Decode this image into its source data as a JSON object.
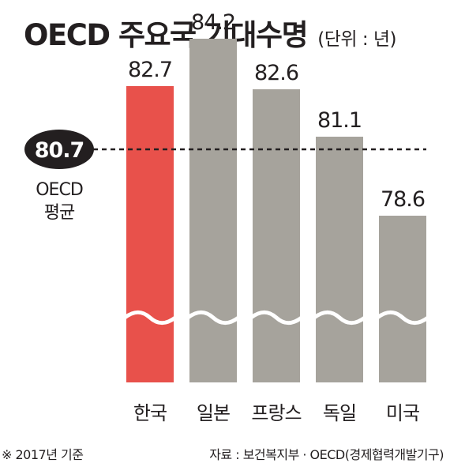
{
  "header": {
    "title": "OECD 주요국 기대수명",
    "unit": "(단위 : 년)"
  },
  "chart_data": {
    "type": "bar",
    "title": "OECD 주요국 기대수명",
    "unit": "(단위 : 년)",
    "categories": [
      "한국",
      "일본",
      "프랑스",
      "독일",
      "미국"
    ],
    "values": [
      82.7,
      84.2,
      82.6,
      81.1,
      78.6
    ],
    "value_labels": [
      "82.7",
      "84.2",
      "82.6",
      "81.1",
      "78.6"
    ],
    "highlight_index": 0,
    "reference_line": {
      "value": 80.7,
      "value_label": "80.7",
      "label_lines": [
        "OECD",
        "평균"
      ]
    },
    "axis_break": true,
    "grid": false,
    "colors": {
      "highlight_bar": "#e8514b",
      "bar": "#a6a39c",
      "text": "#231f20",
      "reference_badge": "#231f20",
      "reference_badge_text": "#ffffff"
    }
  },
  "footer": {
    "note": "※ 2017년 기준",
    "source": "자료 : 보건복지부 · OECD(경제협력개발기구)"
  }
}
